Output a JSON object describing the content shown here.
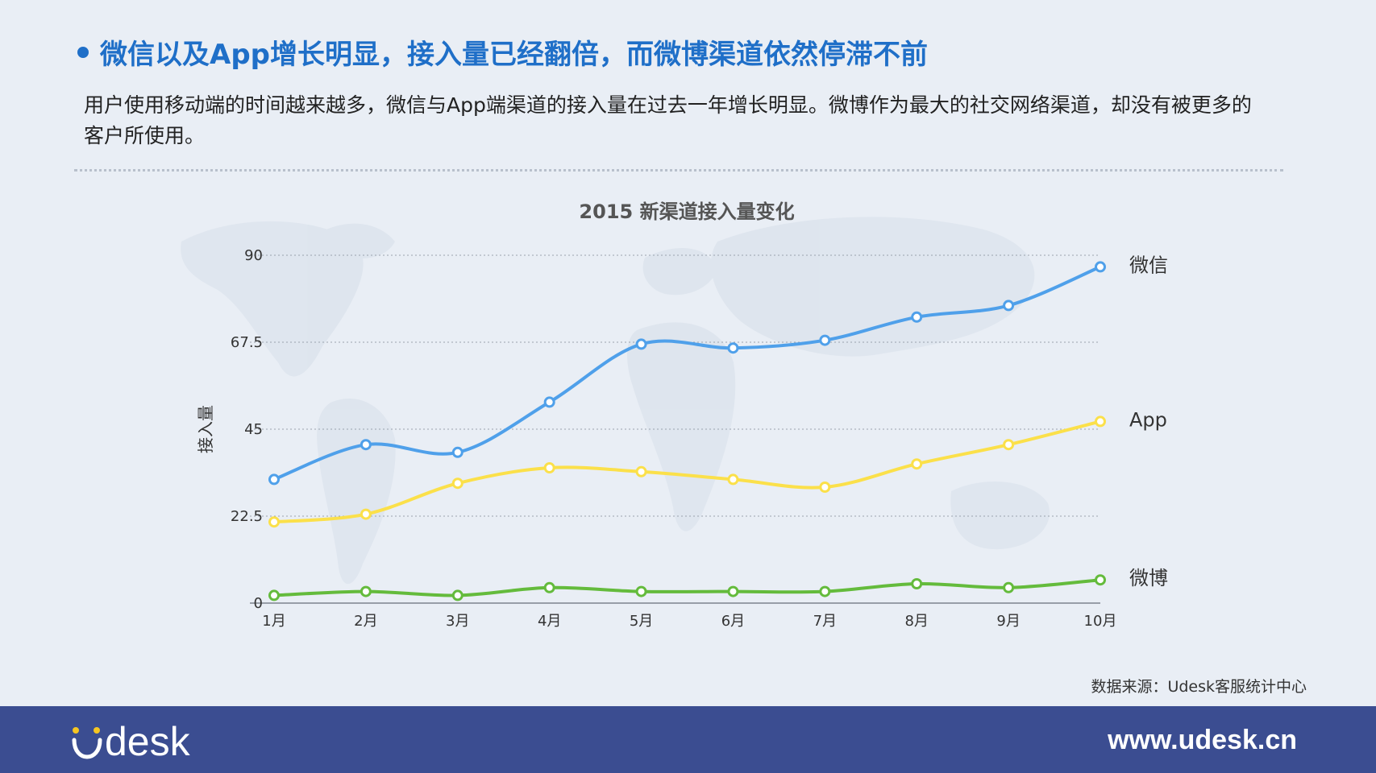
{
  "headline": "微信以及App增长明显，接入量已经翻倍，而微博渠道依然停滞不前",
  "description": "用户使用移动端的时间越来越多，微信与App端渠道的接入量在过去一年增长明显。微博作为最大的社交网络渠道，却没有被更多的客户所使用。",
  "source": "数据来源：Udesk客服统计中心",
  "footer": {
    "logo_text": "desk",
    "url": "www.udesk.cn"
  },
  "colors": {
    "headline": "#1f6fc8",
    "footer_bg": "#3b4d91",
    "logo_accent": "#f6c622"
  },
  "chart_data": {
    "type": "line",
    "title": "2015 新渠道接入量变化",
    "xlabel": "",
    "ylabel": "接入量",
    "categories": [
      "1月",
      "2月",
      "3月",
      "4月",
      "5月",
      "6月",
      "7月",
      "8月",
      "9月",
      "10月"
    ],
    "ylim": [
      0,
      90
    ],
    "yticks": [
      0,
      22.5,
      45,
      67.5,
      90
    ],
    "ytick_labels": [
      "0",
      "22.5",
      "45",
      "67.5",
      "90"
    ],
    "grid": true,
    "legend": "line-end labels (right)",
    "series": [
      {
        "name": "微信",
        "color": "#4fa0ea",
        "values": [
          32,
          41,
          39,
          52,
          67,
          66,
          68,
          74,
          77,
          87
        ]
      },
      {
        "name": "App",
        "color": "#fbe04a",
        "values": [
          21,
          23,
          31,
          35,
          34,
          32,
          30,
          36,
          41,
          47
        ]
      },
      {
        "name": "微博",
        "color": "#64bb3c",
        "values": [
          2,
          3,
          2,
          4,
          3,
          3,
          3,
          5,
          4,
          6
        ]
      }
    ]
  }
}
